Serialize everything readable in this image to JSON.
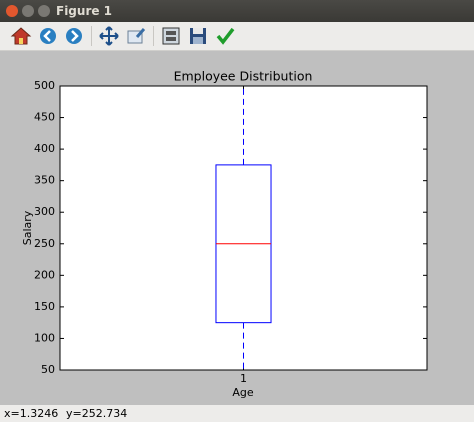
{
  "window": {
    "title": "Figure 1"
  },
  "chart_data": {
    "type": "box",
    "title": "Employee Distribution",
    "x_label": "Age",
    "y_label": "Salary",
    "xlim": [
      0.5,
      1.5
    ],
    "xticks": [
      1
    ],
    "ylim": [
      50,
      500
    ],
    "yticks": [
      50,
      100,
      150,
      200,
      250,
      300,
      350,
      400,
      450,
      500
    ],
    "box_color": "#0000ff",
    "median_color": "#ff0000",
    "boxes": [
      {
        "position": 1,
        "whisker_low": 50,
        "q1": 125,
        "median": 250,
        "q3": 375,
        "whisker_high": 500
      }
    ]
  },
  "status": {
    "x": "x=1.3246",
    "y": "y=252.734"
  }
}
